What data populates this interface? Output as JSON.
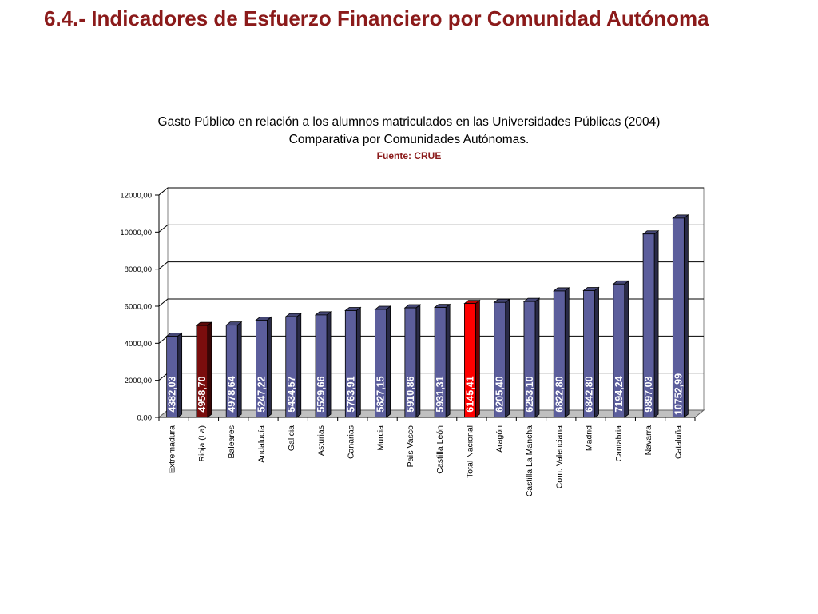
{
  "slide": {
    "title": "6.4.- Indicadores de Esfuerzo Financiero por Comunidad Autónoma"
  },
  "chart_data": {
    "type": "bar",
    "title": "Gasto Público en relación a los alumnos matriculados en las Universidades Públicas (2004)",
    "subtitle": "Comparativa por Comunidades Autónomas.",
    "source": "Fuente: CRUE",
    "categories": [
      "Extremadura",
      "Rioja (La)",
      "Baleares",
      "Andalucía",
      "Galicia",
      "Asturias",
      "Canarias",
      "Murcia",
      "País Vasco",
      "Castilla León",
      "Total Nacional",
      "Aragón",
      "Castilla La Mancha",
      "Com. Valenciana",
      "Madrid",
      "Cantabria",
      "Navarra",
      "Cataluña"
    ],
    "values": [
      4382.03,
      4958.7,
      4978.64,
      5247.22,
      5434.57,
      5529.66,
      5763.91,
      5827.15,
      5910.86,
      5931.31,
      6145.41,
      6205.4,
      6253.1,
      6822.8,
      6842.8,
      7194.24,
      9897.03,
      10752.99
    ],
    "value_labels": [
      "4382,03",
      "4958,70",
      "4978,64",
      "5247,22",
      "5434,57",
      "5529,66",
      "5763,91",
      "5827,15",
      "5910,86",
      "5931,31",
      "6145,41",
      "6205,40",
      "6253,10",
      "6822,80",
      "6842,80",
      "7194,24",
      "9897,03",
      "10752,99"
    ],
    "bar_colors": [
      "#5c5e9c",
      "#7a0d0d",
      "#5c5e9c",
      "#5c5e9c",
      "#5c5e9c",
      "#5c5e9c",
      "#5c5e9c",
      "#5c5e9c",
      "#5c5e9c",
      "#5c5e9c",
      "#ff0000",
      "#5c5e9c",
      "#5c5e9c",
      "#5c5e9c",
      "#5c5e9c",
      "#5c5e9c",
      "#5c5e9c",
      "#5c5e9c"
    ],
    "yticks": [
      0,
      2000,
      4000,
      6000,
      8000,
      10000,
      12000
    ],
    "ytick_labels": [
      "0,00",
      "2000,00",
      "4000,00",
      "6000,00",
      "8000,00",
      "10000,00",
      "12000,00"
    ],
    "ylim": [
      0,
      12000
    ],
    "grid": true,
    "legend": "none",
    "style": "3d-columns",
    "xlabel": "",
    "ylabel": ""
  }
}
